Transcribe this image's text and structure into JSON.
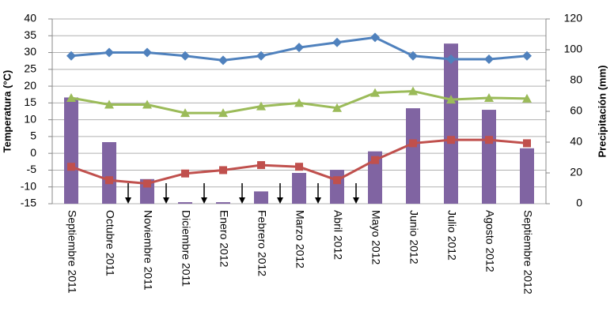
{
  "chart_data": {
    "type": "bar-line",
    "y_label": "Temperatura (°C)",
    "y2_label": "Precipitación (mm)",
    "categories": [
      "Septiembre 2011",
      "Octubre 2011",
      "Noviembre 2011",
      "Diciembre 2011",
      "Enero 2012",
      "Febrero 2012",
      "Marzo 2012",
      "Abril 2012",
      "Mayo 2012",
      "Junio 2012",
      "Julio 2012",
      "Agosto 2012",
      "Septiembre 2012"
    ],
    "series": [
      {
        "kind": "bar",
        "axis": "y2",
        "color": "#8064a2",
        "values": [
          69,
          40,
          16,
          1,
          1,
          8,
          20,
          22,
          34,
          62,
          104,
          61,
          36
        ]
      },
      {
        "kind": "line",
        "marker": "diamond",
        "color": "#4f81bd",
        "values": [
          29,
          30,
          30,
          29,
          27.7,
          29,
          31.5,
          33,
          34.5,
          29,
          28,
          28,
          29
        ]
      },
      {
        "kind": "line",
        "marker": "triangle",
        "color": "#9bbb59",
        "values": [
          16.5,
          14.5,
          14.5,
          12,
          12,
          14,
          15,
          13.5,
          18,
          18.5,
          16,
          16.5,
          16.3
        ]
      },
      {
        "kind": "line",
        "marker": "square",
        "color": "#c0504d",
        "values": [
          -4,
          -8,
          -9,
          -6,
          -5,
          -3.5,
          -4,
          -8,
          -2,
          3,
          4,
          4,
          3
        ]
      }
    ],
    "ylim": [
      -15,
      40
    ],
    "yticks": [
      -15,
      -10,
      -5,
      0,
      5,
      10,
      15,
      20,
      25,
      30,
      35,
      40
    ],
    "y2lim": [
      0,
      120
    ],
    "y2ticks": [
      0,
      20,
      40,
      60,
      80,
      100,
      120
    ],
    "grid": true
  }
}
